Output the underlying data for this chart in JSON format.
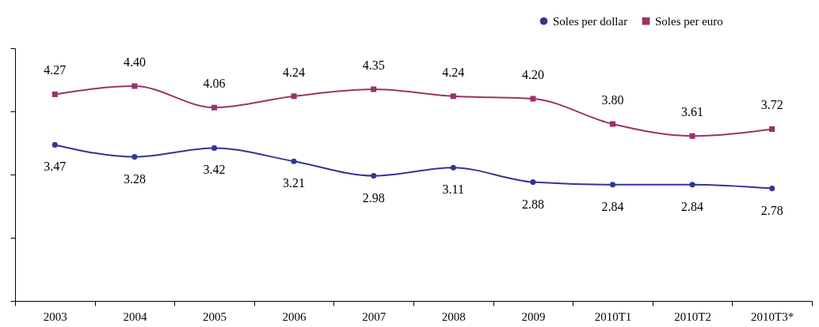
{
  "chart_data": {
    "type": "line",
    "categories": [
      "2003",
      "2004",
      "2005",
      "2006",
      "2007",
      "2008",
      "2009",
      "2010T1",
      "2010T2",
      "2010T3*"
    ],
    "series": [
      {
        "name": "Soles per dollar",
        "color": "#333399",
        "marker": "circle",
        "values": [
          3.47,
          3.28,
          3.42,
          3.21,
          2.98,
          3.11,
          2.88,
          2.84,
          2.84,
          2.78
        ],
        "value_labels": [
          "3.47",
          "3.28",
          "3.42",
          "3.21",
          "2.98",
          "3.11",
          "2.88",
          "2.84",
          "2.84",
          "2.78"
        ]
      },
      {
        "name": "Soles per euro",
        "color": "#993366",
        "marker": "square",
        "values": [
          4.27,
          4.4,
          4.06,
          4.24,
          4.35,
          4.24,
          4.2,
          3.8,
          3.61,
          3.72
        ],
        "value_labels": [
          "4.27",
          "4.40",
          "4.06",
          "4.24",
          "4.35",
          "4.24",
          "4.20",
          "3.80",
          "3.61",
          "3.72"
        ]
      }
    ],
    "ylim": [
      1,
      5
    ],
    "yticks": [
      {
        "value": 1,
        "label": null
      },
      {
        "value": 2,
        "label": null
      },
      {
        "value": 3,
        "label": null
      },
      {
        "value": 4,
        "label": null
      },
      {
        "value": 5,
        "label": null
      }
    ],
    "tick_labels": "x",
    "legend": "top right",
    "grid": false,
    "line_style": "solid"
  }
}
